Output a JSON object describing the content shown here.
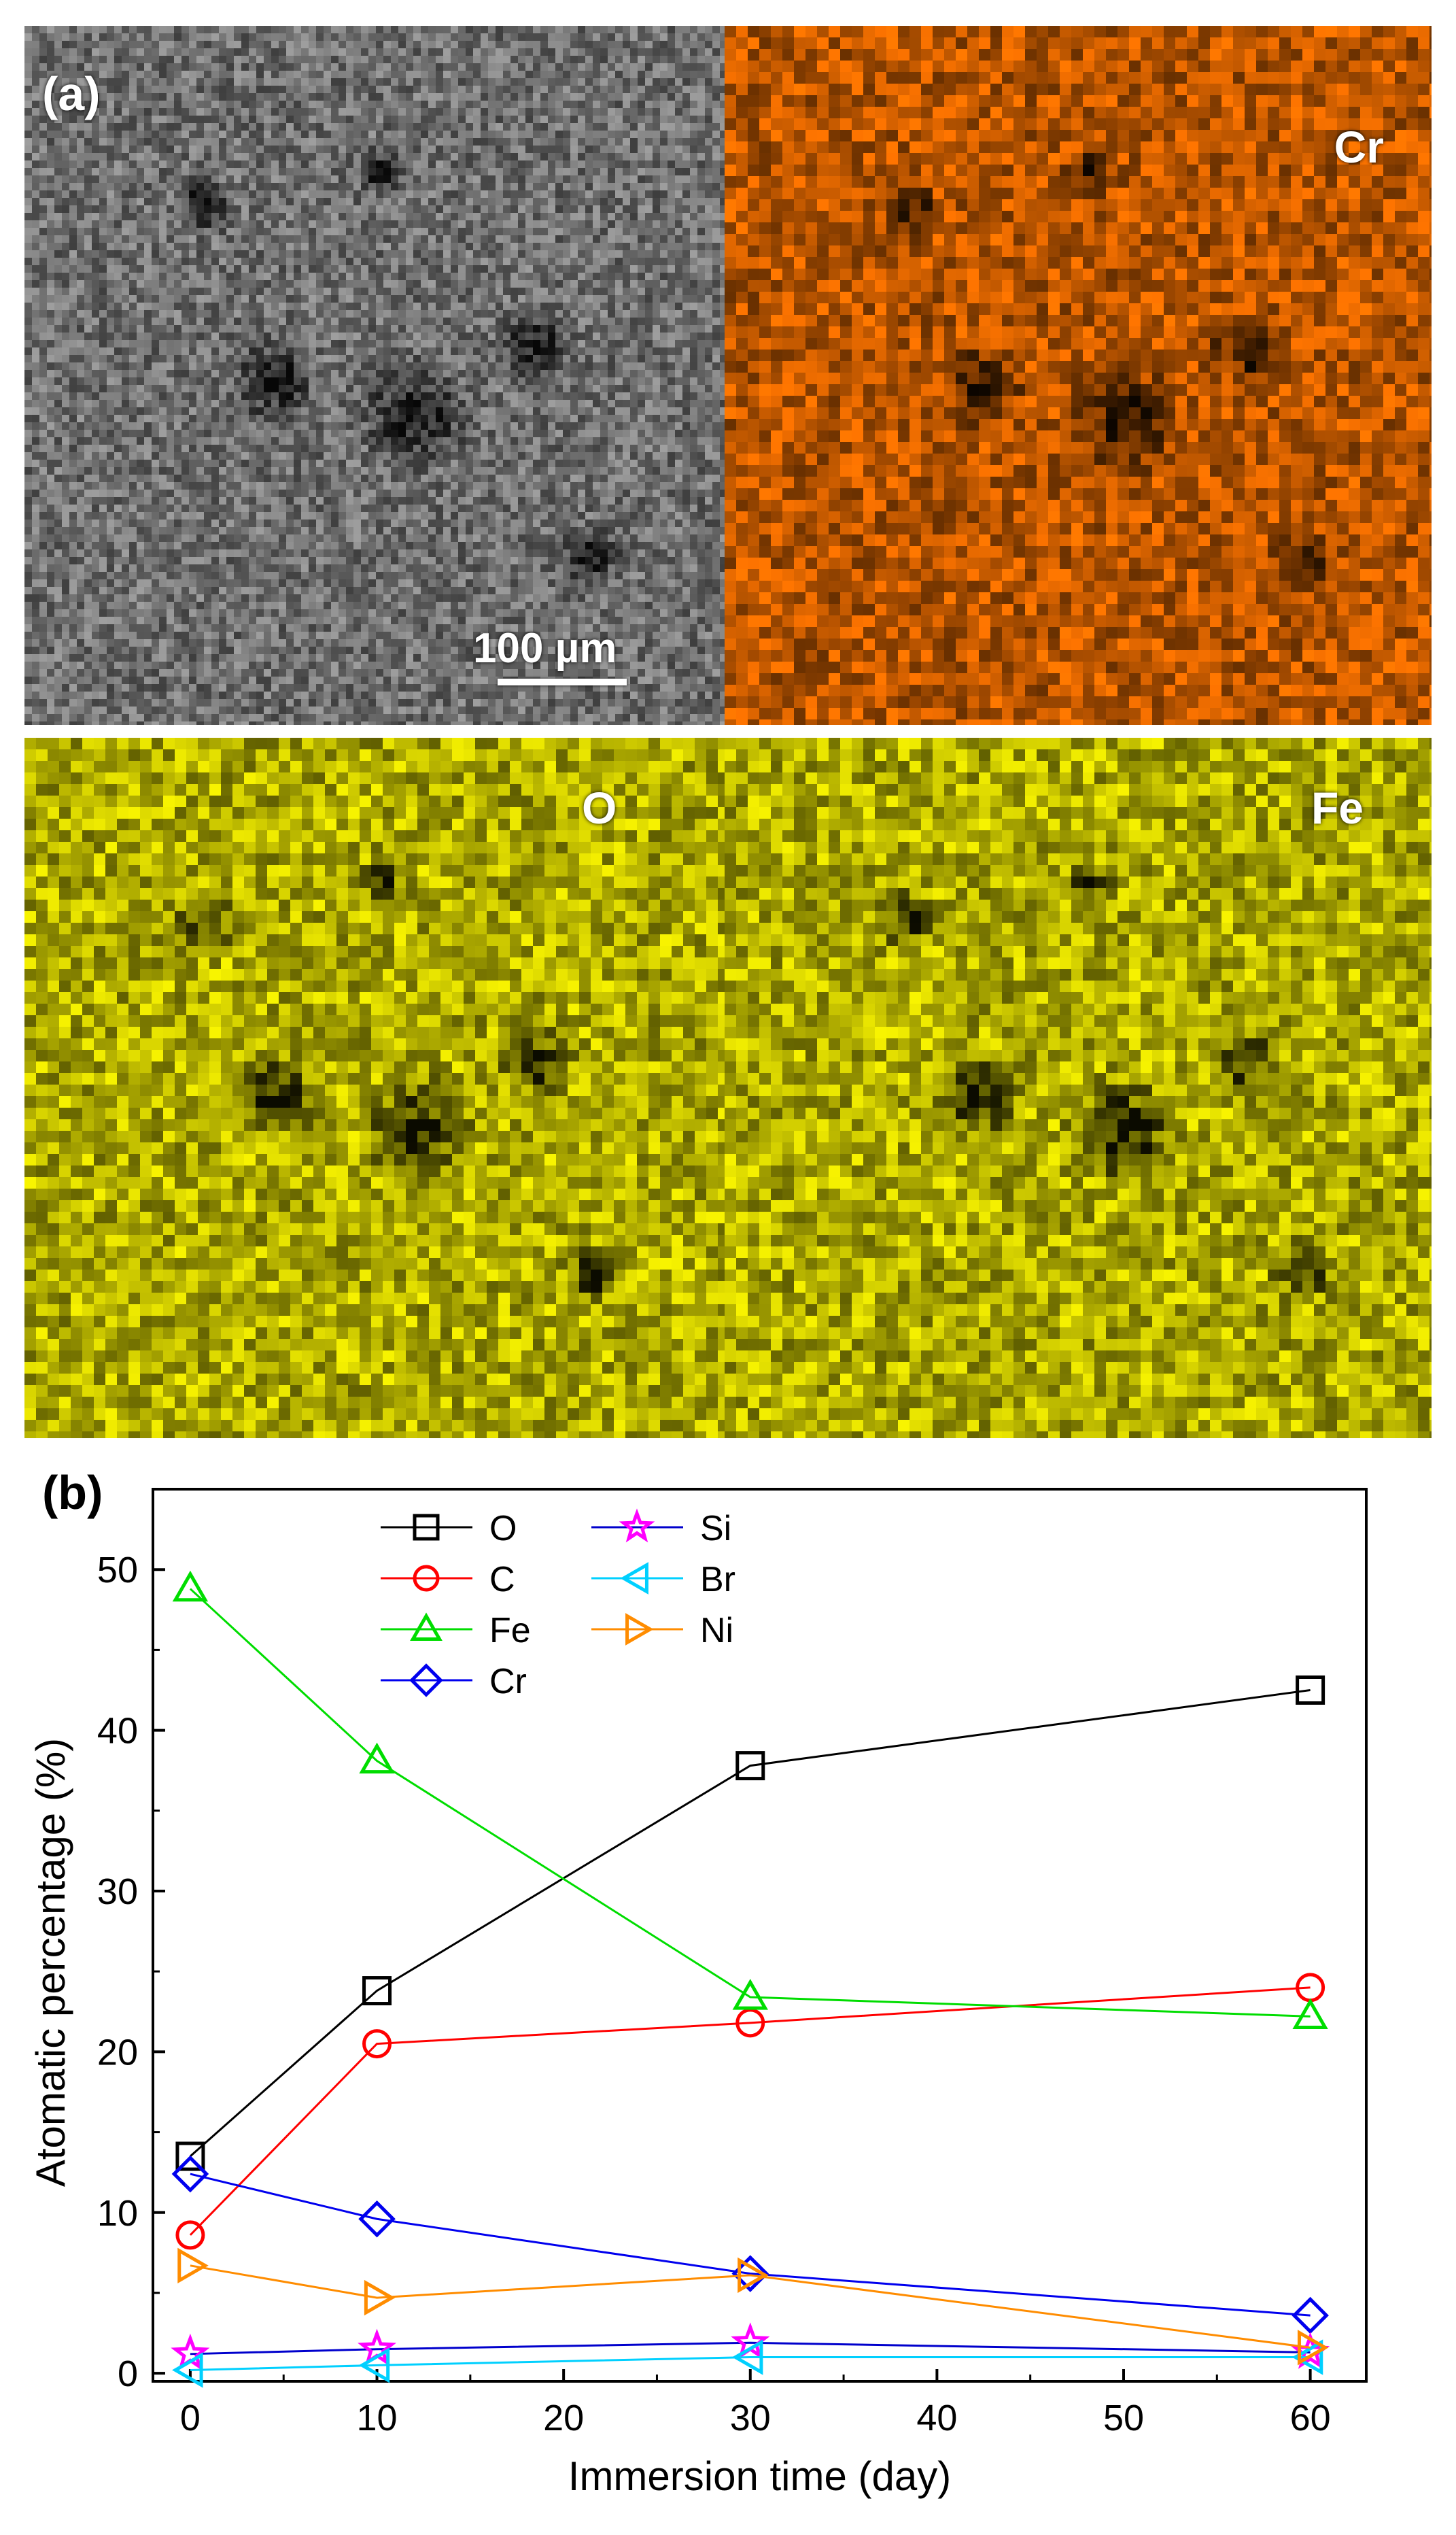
{
  "panel_a": {
    "label": "(a)",
    "scale_bar_text": "100 µm",
    "maps": [
      {
        "element": "Cr",
        "color": "#e86a00"
      },
      {
        "element": "O",
        "color": "#d8d400"
      },
      {
        "element": "Fe",
        "color": "#d8d400"
      }
    ],
    "sem_color": "#8a8a8a"
  },
  "panel_b": {
    "label": "(b)"
  },
  "chart_data": {
    "type": "line",
    "xlabel": "Immersion time (day)",
    "ylabel": "Atomatic percentage (%)",
    "xlim": [
      -2,
      63
    ],
    "ylim": [
      -0.5,
      55
    ],
    "xticks": [
      0,
      10,
      20,
      30,
      40,
      50,
      60
    ],
    "yticks": [
      0,
      10,
      20,
      30,
      40,
      50
    ],
    "legend_position": "top-center",
    "x": [
      0,
      10,
      30,
      60
    ],
    "series": [
      {
        "name": "O",
        "color": "#000000",
        "marker": "square",
        "values": [
          13.5,
          23.8,
          37.8,
          42.5
        ]
      },
      {
        "name": "C",
        "color": "#ff0000",
        "marker": "circle",
        "values": [
          8.6,
          20.5,
          21.8,
          24.0
        ]
      },
      {
        "name": "Fe",
        "color": "#00dd00",
        "marker": "triangle-up",
        "values": [
          48.8,
          38.1,
          23.4,
          22.2
        ]
      },
      {
        "name": "Cr",
        "color": "#0000ee",
        "marker": "diamond",
        "values": [
          12.4,
          9.6,
          6.2,
          3.6
        ]
      },
      {
        "name": "Si",
        "color": "#ff00ff",
        "marker": "star",
        "values": [
          1.2,
          1.5,
          1.9,
          1.3
        ]
      },
      {
        "name": "Br",
        "color": "#00d0ff",
        "marker": "triangle-left",
        "values": [
          0.2,
          0.5,
          1.0,
          1.0
        ]
      },
      {
        "name": "Ni",
        "color": "#ff8c00",
        "marker": "triangle-right",
        "values": [
          6.7,
          4.7,
          6.1,
          1.6
        ]
      }
    ],
    "line_colors": {
      "Si": "#0000cc",
      "Br": "#00d0ff"
    }
  }
}
